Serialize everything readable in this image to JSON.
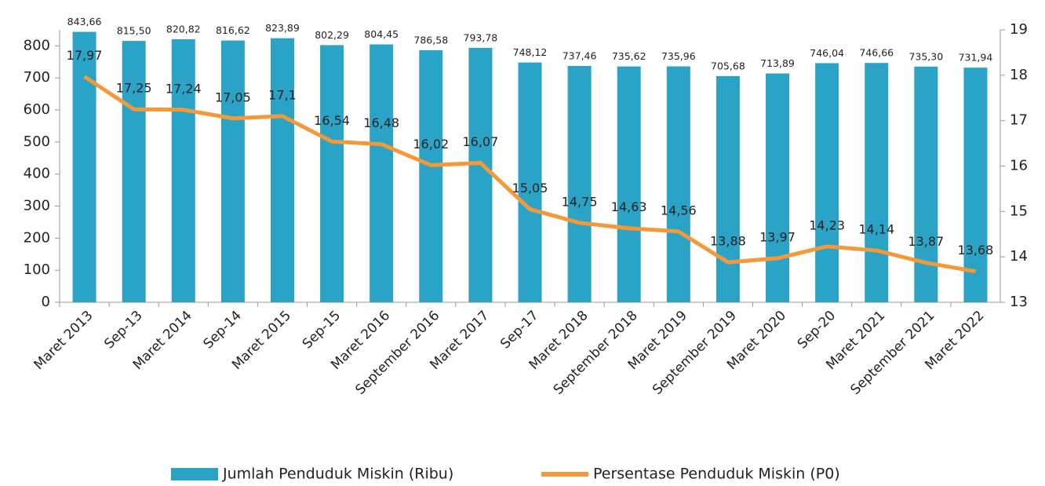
{
  "chart_data": {
    "type": "bar-line",
    "categories": [
      "Maret 2013",
      "Sep-13",
      "Maret 2014",
      "Sep-14",
      "Maret 2015",
      "Sep-15",
      "Maret 2016",
      "September 2016",
      "Maret 2017",
      "Sep-17",
      "Maret 2018",
      "September 2018",
      "Maret 2019",
      "September 2019",
      "Maret 2020",
      "Sep-20",
      "Maret 2021",
      "September 2021",
      "Maret 2022"
    ],
    "series": [
      {
        "name": "Jumlah Penduduk Miskin (Ribu)",
        "type": "bar",
        "color": "#2aa3c6",
        "values": [
          843.66,
          815.5,
          820.82,
          816.62,
          823.89,
          802.29,
          804.45,
          786.58,
          793.78,
          748.12,
          737.46,
          735.62,
          735.96,
          705.68,
          713.89,
          746.04,
          746.66,
          735.3,
          731.94
        ],
        "value_labels": [
          "843,66",
          "815,50",
          "820,82",
          "816,62",
          "823,89",
          "802,29",
          "804,45",
          "786,58",
          "793,78",
          "748,12",
          "737,46",
          "735,62",
          "735,96",
          "705,68",
          "713,89",
          "746,04",
          "746,66",
          "735,30",
          "731,94"
        ]
      },
      {
        "name": "Persentase Penduduk Miskin (P0)",
        "type": "line",
        "axis": "y2",
        "color": "#f4993a",
        "values": [
          17.97,
          17.25,
          17.24,
          17.05,
          17.1,
          16.54,
          16.48,
          16.02,
          16.07,
          15.05,
          14.75,
          14.63,
          14.56,
          13.88,
          13.97,
          14.23,
          14.14,
          13.87,
          13.68
        ],
        "value_labels": [
          "17,97",
          "17,25",
          "17,24",
          "17,05",
          "17,1",
          "16,54",
          "16,48",
          "16,02",
          "16,07",
          "15,05",
          "14,75",
          "14,63",
          "14,56",
          "13,88",
          "13,97",
          "14,23",
          "14,14",
          "13,87",
          "13,68"
        ]
      }
    ],
    "ylim": [
      0,
      850
    ],
    "yticks": [
      0,
      100,
      200,
      300,
      400,
      500,
      600,
      700,
      800
    ],
    "y2lim": [
      13,
      19
    ],
    "y2ticks": [
      13,
      14,
      15,
      16,
      17,
      18,
      19
    ],
    "legend": "bottom"
  }
}
